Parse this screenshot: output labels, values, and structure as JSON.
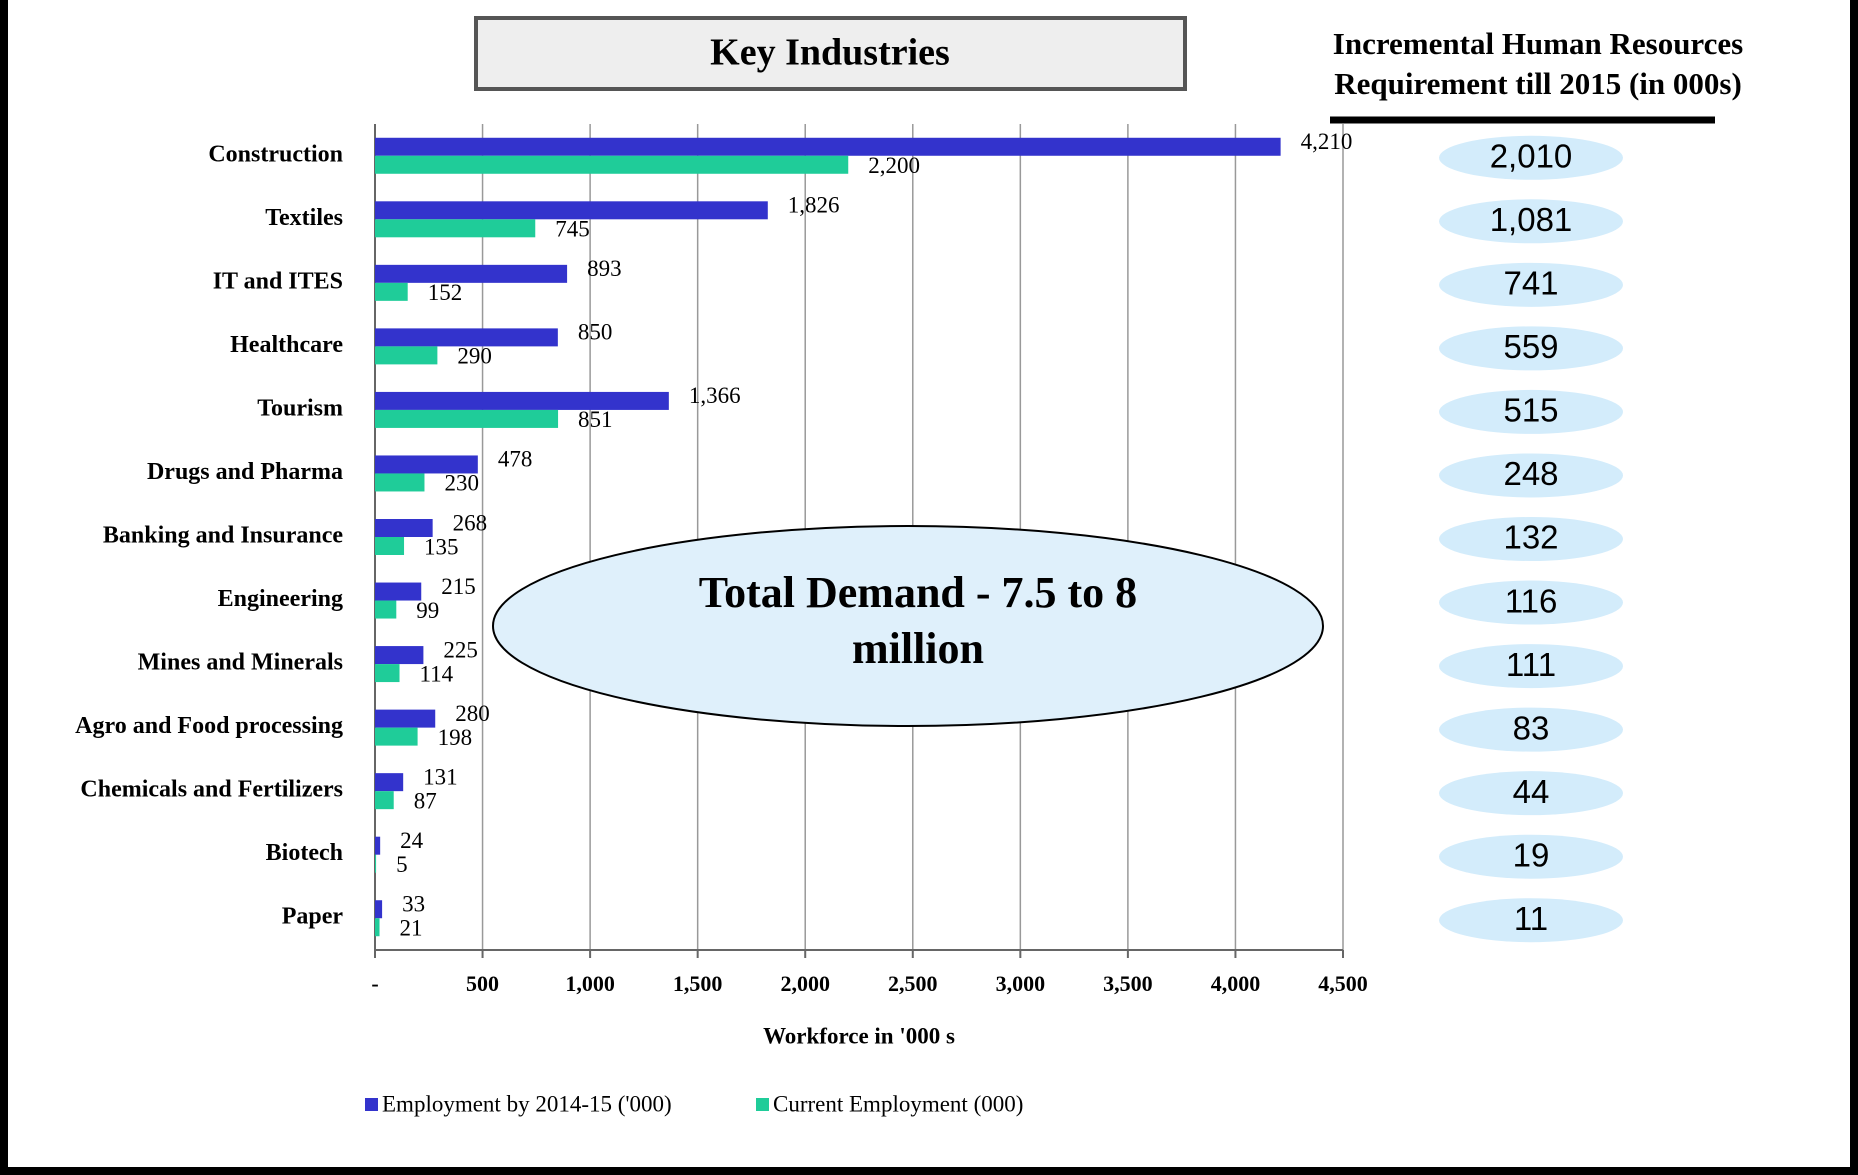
{
  "chart_data": {
    "type": "hbar",
    "title": "Key Industries",
    "categories": [
      "Construction",
      "Textiles",
      "IT and ITES",
      "Healthcare",
      "Tourism",
      "Drugs and Pharma",
      "Banking and Insurance",
      "Engineering",
      "Mines and Minerals",
      "Agro and Food  processing",
      "Chemicals and Fertilizers",
      "Biotech",
      "Paper"
    ],
    "series": [
      {
        "name": "Employment by 2014-15 ('000)",
        "color": "#3333cc",
        "values": [
          4210,
          1826,
          893,
          850,
          1366,
          478,
          268,
          215,
          225,
          280,
          131,
          24,
          33
        ],
        "value_labels": [
          "4,210",
          "1,826",
          "893",
          "850",
          "1,366",
          "478",
          "268",
          "215",
          "225",
          "280",
          "131",
          "24",
          "33"
        ]
      },
      {
        "name": "Current Employment  (000)",
        "color": "#1fcc99",
        "values": [
          2200,
          745,
          152,
          290,
          851,
          230,
          135,
          99,
          114,
          198,
          87,
          5,
          21
        ],
        "value_labels": [
          "2,200",
          "745",
          "152",
          "290",
          "851",
          "230",
          "135",
          "99",
          "114",
          "198",
          "87",
          "5",
          "21"
        ]
      }
    ],
    "xlabel": "Workforce in '000 s",
    "xlim": [
      0,
      4500
    ],
    "xticks": [
      {
        "value": 0,
        "label": "-"
      },
      500,
      {
        "value": 1000,
        "label": "1,000"
      },
      {
        "value": 1500,
        "label": "1,500"
      },
      {
        "value": 2000,
        "label": "2,000"
      },
      {
        "value": 2500,
        "label": "2,500"
      },
      {
        "value": 3000,
        "label": "3,000"
      },
      {
        "value": 3500,
        "label": "3,500"
      },
      {
        "value": 4000,
        "label": "4,000"
      },
      {
        "value": 4500,
        "label": "4,500"
      }
    ],
    "grid": true,
    "legend": "bottom",
    "annotation": "Total Demand - 7.5 to 8 million",
    "side_panel": {
      "title": "Incremental Human Resources Requirement till 2015 (in 000s)",
      "values": [
        2010,
        1081,
        741,
        559,
        515,
        248,
        132,
        116,
        111,
        83,
        44,
        19,
        11
      ],
      "value_labels": [
        "2,010",
        "1,081",
        "741",
        "559",
        "515",
        "248",
        "132",
        "116",
        "111",
        "83",
        "44",
        "19",
        "11"
      ]
    }
  }
}
